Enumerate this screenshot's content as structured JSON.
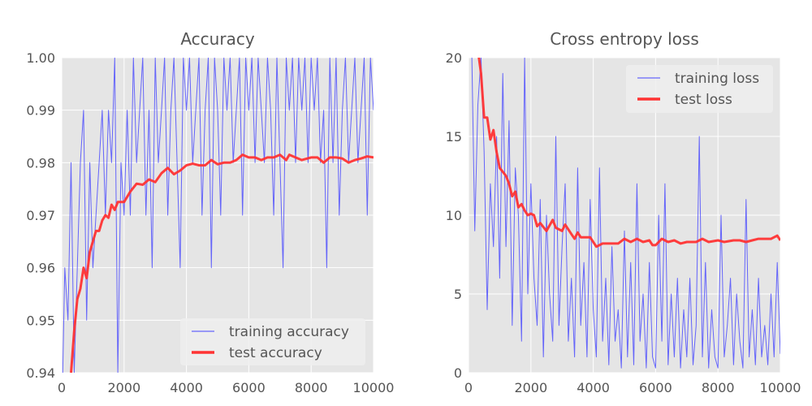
{
  "chart_data": [
    {
      "type": "line",
      "title": "Accuracy",
      "xlabel": "",
      "ylabel": "",
      "xlim": [
        0,
        10000
      ],
      "ylim": [
        0.94,
        1.0
      ],
      "xticks": [
        0,
        2000,
        4000,
        6000,
        8000,
        10000
      ],
      "xtick_labels": [
        "0",
        "2000",
        "4000",
        "6000",
        "8000",
        "10000"
      ],
      "yticks": [
        0.94,
        0.95,
        0.96,
        0.97,
        0.98,
        0.99,
        1.0
      ],
      "ytick_labels": [
        "0.94",
        "0.95",
        "0.96",
        "0.97",
        "0.98",
        "0.99",
        "1.00"
      ],
      "grid": true,
      "legend_position": "bottom-right",
      "series": [
        {
          "name": "training accuracy",
          "color": "#4444ff",
          "x_start": 0,
          "x_step": 100,
          "values": [
            0.93,
            0.96,
            0.95,
            0.98,
            0.94,
            0.96,
            0.98,
            0.99,
            0.95,
            0.98,
            0.96,
            0.97,
            0.98,
            0.99,
            0.97,
            0.99,
            0.98,
            1.0,
            0.94,
            0.98,
            0.97,
            0.99,
            0.97,
            1.0,
            0.98,
            0.99,
            1.0,
            0.97,
            0.99,
            0.96,
            1.0,
            0.98,
            0.99,
            1.0,
            0.97,
            0.99,
            1.0,
            0.98,
            0.96,
            1.0,
            0.99,
            1.0,
            0.98,
            0.99,
            1.0,
            0.97,
            0.99,
            1.0,
            0.96,
            1.0,
            0.99,
            0.97,
            1.0,
            0.99,
            1.0,
            0.98,
            0.99,
            1.0,
            0.97,
            1.0,
            0.99,
            1.0,
            0.98,
            1.0,
            0.99,
            0.98,
            1.0,
            0.99,
            0.97,
            1.0,
            0.98,
            0.96,
            1.0,
            0.99,
            1.0,
            0.98,
            1.0,
            0.99,
            1.0,
            0.98,
            1.0,
            0.99,
            1.0,
            0.98,
            0.99,
            0.96,
            1.0,
            0.98,
            1.0,
            0.97,
            0.99,
            1.0,
            0.98,
            0.99,
            1.0,
            0.98,
            0.99,
            1.0,
            0.97,
            1.0,
            0.99
          ]
        },
        {
          "name": "test accuracy",
          "color": "#ff3333",
          "x": [
            300,
            400,
            500,
            600,
            700,
            800,
            900,
            1000,
            1100,
            1200,
            1300,
            1400,
            1500,
            1600,
            1700,
            1800,
            2000,
            2200,
            2400,
            2600,
            2800,
            3000,
            3200,
            3400,
            3600,
            3800,
            4000,
            4200,
            4400,
            4600,
            4800,
            5000,
            5200,
            5400,
            5600,
            5800,
            6000,
            6200,
            6400,
            6600,
            6800,
            7000,
            7200,
            7300,
            7500,
            7700,
            8000,
            8200,
            8400,
            8600,
            8800,
            9000,
            9200,
            9400,
            9600,
            9800,
            10000
          ],
          "values": [
            0.94,
            0.948,
            0.954,
            0.956,
            0.96,
            0.958,
            0.963,
            0.965,
            0.967,
            0.967,
            0.969,
            0.97,
            0.9695,
            0.972,
            0.971,
            0.9725,
            0.9725,
            0.9745,
            0.976,
            0.9758,
            0.9768,
            0.9763,
            0.978,
            0.979,
            0.9778,
            0.9785,
            0.9795,
            0.9798,
            0.9795,
            0.9795,
            0.9805,
            0.9797,
            0.98,
            0.98,
            0.9805,
            0.9815,
            0.981,
            0.981,
            0.9805,
            0.981,
            0.981,
            0.9815,
            0.9805,
            0.9815,
            0.981,
            0.9805,
            0.981,
            0.981,
            0.98,
            0.981,
            0.981,
            0.9808,
            0.98,
            0.9805,
            0.9808,
            0.9812,
            0.981
          ]
        }
      ]
    },
    {
      "type": "line",
      "title": "Cross entropy loss",
      "xlabel": "",
      "ylabel": "",
      "xlim": [
        0,
        10000
      ],
      "ylim": [
        0,
        20
      ],
      "xticks": [
        0,
        2000,
        4000,
        6000,
        8000,
        10000
      ],
      "xtick_labels": [
        "0",
        "2000",
        "4000",
        "6000",
        "8000",
        "10000"
      ],
      "yticks": [
        0,
        5,
        10,
        15,
        20
      ],
      "ytick_labels": [
        "0",
        "5",
        "10",
        "15",
        "20"
      ],
      "grid": true,
      "legend_position": "top-right",
      "series": [
        {
          "name": "training loss",
          "color": "#4444ff",
          "x_start": 0,
          "x_step": 100,
          "values": [
            25,
            21,
            9,
            17,
            20,
            14,
            4,
            12,
            8,
            15,
            6,
            19,
            8,
            16,
            3,
            13,
            10,
            2,
            20,
            5,
            12,
            6,
            3,
            11,
            1,
            10,
            5,
            2,
            15,
            3,
            8,
            12,
            2,
            6,
            1,
            13,
            3,
            7,
            1,
            11,
            4,
            1,
            13,
            2,
            6,
            0.5,
            8,
            2,
            4,
            0.3,
            9,
            1,
            7,
            0.5,
            12,
            2,
            5,
            0.3,
            7,
            1,
            0.3,
            10,
            2,
            12,
            0.5,
            5,
            1,
            6,
            0.3,
            4,
            1,
            6,
            0.5,
            3,
            15,
            1,
            7,
            0.3,
            4,
            1,
            0.3,
            10,
            1,
            3,
            6,
            0.5,
            5,
            2,
            0.3,
            11,
            1,
            4,
            0.5,
            6,
            1,
            3,
            0.5,
            5,
            1,
            7,
            1.2
          ]
        },
        {
          "name": "test loss",
          "color": "#ff3333",
          "x": [
            300,
            400,
            500,
            600,
            700,
            800,
            900,
            1000,
            1200,
            1300,
            1400,
            1500,
            1600,
            1700,
            1800,
            1900,
            2000,
            2100,
            2200,
            2300,
            2500,
            2700,
            2800,
            3000,
            3100,
            3300,
            3400,
            3500,
            3600,
            3900,
            4100,
            4300,
            4600,
            4800,
            5000,
            5200,
            5400,
            5600,
            5800,
            5900,
            6000,
            6200,
            6400,
            6600,
            6800,
            7000,
            7300,
            7500,
            7700,
            8000,
            8200,
            8500,
            8700,
            8900,
            9100,
            9300,
            9500,
            9700,
            9900,
            10000
          ],
          "values": [
            20.5,
            19,
            16.2,
            16.2,
            14.8,
            15.4,
            14,
            13,
            12.5,
            12,
            11.2,
            11.5,
            10.5,
            10.7,
            10.3,
            10,
            10.1,
            10,
            9.3,
            9.5,
            9,
            9.7,
            9.2,
            9,
            9.4,
            8.8,
            8.5,
            8.9,
            8.6,
            8.6,
            8.0,
            8.2,
            8.2,
            8.2,
            8.5,
            8.3,
            8.5,
            8.3,
            8.4,
            8.1,
            8.1,
            8.5,
            8.3,
            8.4,
            8.2,
            8.3,
            8.3,
            8.5,
            8.3,
            8.4,
            8.3,
            8.4,
            8.4,
            8.3,
            8.4,
            8.5,
            8.5,
            8.5,
            8.7,
            8.4
          ]
        }
      ]
    }
  ]
}
